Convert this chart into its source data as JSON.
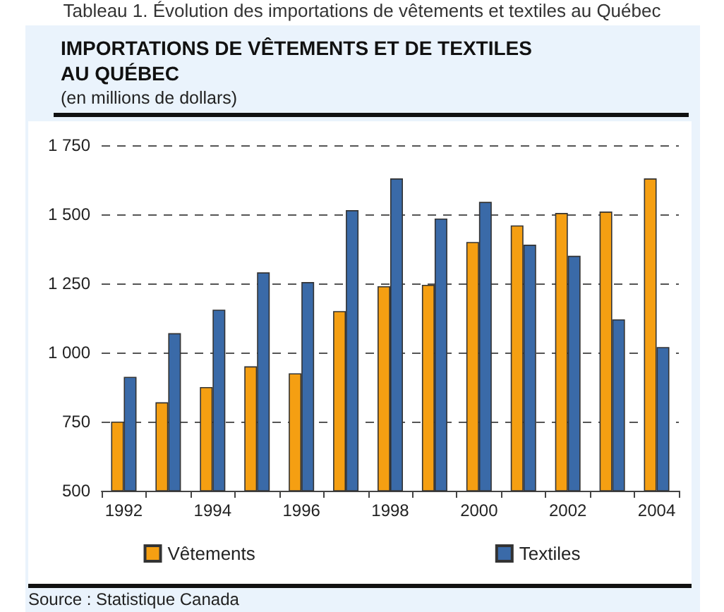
{
  "chart_data": {
    "type": "bar",
    "title": "IMPORTATIONS DE VÊTEMENTS ET DE TEXTILES\nAU QUÉBEC",
    "subtitle": "(en millions de dollars)",
    "annotations": [
      "Tableau 1. Évolution des importations de vêtements et textiles au Québec",
      "Source : Statistique Canada"
    ],
    "categories": [
      "1992",
      null,
      "1994",
      null,
      "1996",
      null,
      "1998",
      null,
      "2000",
      null,
      "2002",
      null,
      "2004"
    ],
    "series": [
      {
        "name": "Vêtements",
        "color": "#f59f12",
        "values": [
          750,
          820,
          875,
          950,
          925,
          1150,
          1240,
          1245,
          1400,
          1460,
          1505,
          1510,
          1630
        ]
      },
      {
        "name": "Textiles",
        "color": "#3a6aa8",
        "values": [
          912,
          1070,
          1155,
          1290,
          1255,
          1515,
          1630,
          1485,
          1545,
          1390,
          1350,
          1120,
          1020
        ]
      }
    ],
    "ylim": [
      500,
      1750
    ],
    "yticks": [
      500,
      750,
      {
        "value": 1000,
        "label": "1 000"
      },
      {
        "value": 1250,
        "label": "1 250"
      },
      {
        "value": 1500,
        "label": "1 500"
      },
      {
        "value": 1750,
        "label": "1 750"
      }
    ],
    "grid": "y",
    "legend": "bottom"
  }
}
